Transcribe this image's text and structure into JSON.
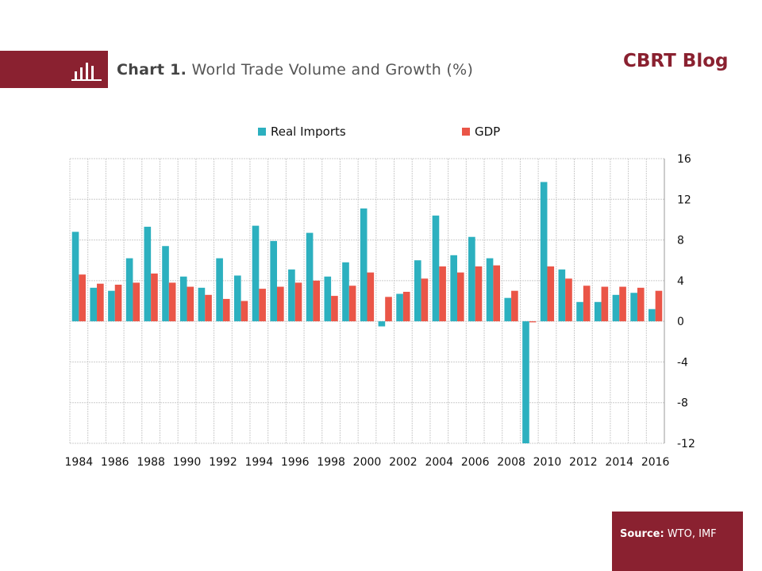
{
  "header": {
    "chart_number": "Chart 1.",
    "title": "World Trade Volume and Growth (%)",
    "brand": "CBRT Blog"
  },
  "source": {
    "label": "Source:",
    "value": "WTO, IMF"
  },
  "colors": {
    "brand": "#8a2130",
    "real_imports": "#2cb0bf",
    "gdp": "#ea5547",
    "grid": "#cccccc"
  },
  "chart_data": {
    "type": "bar",
    "title": "World Trade Volume and Growth (%)",
    "xlabel": "",
    "ylabel": "",
    "ylim": [
      -12,
      16
    ],
    "yticks": [
      16,
      12,
      8,
      4,
      0,
      -4,
      -8,
      -12
    ],
    "y_axis_side": "right",
    "grid": true,
    "legend": "top-center",
    "categories": [
      "1984",
      "1985",
      "1986",
      "1987",
      "1988",
      "1989",
      "1990",
      "1991",
      "1992",
      "1993",
      "1994",
      "1995",
      "1996",
      "1997",
      "1998",
      "1999",
      "2000",
      "2001",
      "2002",
      "2003",
      "2004",
      "2005",
      "2006",
      "2007",
      "2008",
      "2009",
      "2010",
      "2011",
      "2012",
      "2013",
      "2014",
      "2015",
      "2016"
    ],
    "xtick_labels": [
      "1984",
      "1986",
      "1988",
      "1990",
      "1992",
      "1994",
      "1996",
      "1998",
      "2000",
      "2002",
      "2004",
      "2006",
      "2008",
      "2010",
      "2012",
      "2014",
      "2016"
    ],
    "series": [
      {
        "name": "Real Imports",
        "color": "#2cb0bf",
        "values": [
          8.8,
          3.3,
          3.0,
          6.2,
          9.3,
          7.4,
          4.4,
          3.3,
          6.2,
          4.5,
          9.4,
          7.9,
          5.1,
          8.7,
          4.4,
          5.8,
          11.1,
          -0.5,
          2.7,
          6.0,
          10.4,
          6.5,
          8.3,
          6.2,
          2.3,
          -12.0,
          13.7,
          5.1,
          1.9,
          1.9,
          2.6,
          2.8,
          1.2
        ]
      },
      {
        "name": "GDP",
        "color": "#ea5547",
        "values": [
          4.6,
          3.7,
          3.6,
          3.8,
          4.7,
          3.8,
          3.4,
          2.6,
          2.2,
          2.0,
          3.2,
          3.4,
          3.8,
          4.0,
          2.5,
          3.5,
          4.8,
          2.4,
          2.9,
          4.2,
          5.4,
          4.8,
          5.4,
          5.5,
          3.0,
          -0.1,
          5.4,
          4.2,
          3.5,
          3.4,
          3.4,
          3.3,
          3.0
        ]
      }
    ]
  }
}
